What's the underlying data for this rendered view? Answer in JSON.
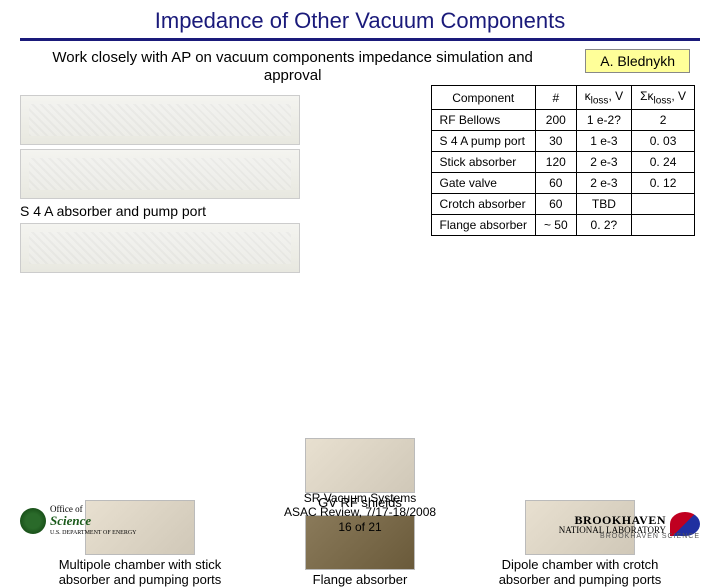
{
  "title": "Impedance of Other Vacuum Components",
  "subhead": "Work closely with AP on vacuum components impedance simulation and approval",
  "author": "A. Blednykh",
  "table": {
    "headers": [
      "Component",
      "#",
      "κ_loss, V",
      "Σκ_loss, V"
    ],
    "rows": [
      [
        "RF Bellows",
        "200",
        "1 e-2?",
        "2"
      ],
      [
        "S 4 A pump port",
        "30",
        "1 e-3",
        "0. 03"
      ],
      [
        "Stick absorber",
        "120",
        "2 e-3",
        "0. 24"
      ],
      [
        "Gate valve",
        "60",
        "2 e-3",
        "0. 12"
      ],
      [
        "Crotch absorber",
        "60",
        "TBD",
        ""
      ],
      [
        "Flange absorber",
        "~ 50",
        "0. 2?",
        ""
      ]
    ]
  },
  "captions": {
    "s4a": "S 4 A absorber and pump port",
    "gv": "GV RF shields",
    "flange": "Flange absorber",
    "multipole": "Multipole chamber with stick absorber and pumping ports",
    "dipole": "Dipole chamber with crotch absorber and pumping ports"
  },
  "footer": {
    "line1": "SR Vacuum Systems",
    "line2": "ASAC Review, 7/17-18/2008",
    "line3": "16 of 21"
  },
  "logos": {
    "office_top": "Office of",
    "office_main": "Science",
    "office_sub": "U.S. DEPARTMENT OF ENERGY",
    "bnl_main": "BROOKHAVEN",
    "bnl_sub": "NATIONAL LABORATORY",
    "bnl_foot": "BROOKHAVEN SCIENCE"
  }
}
